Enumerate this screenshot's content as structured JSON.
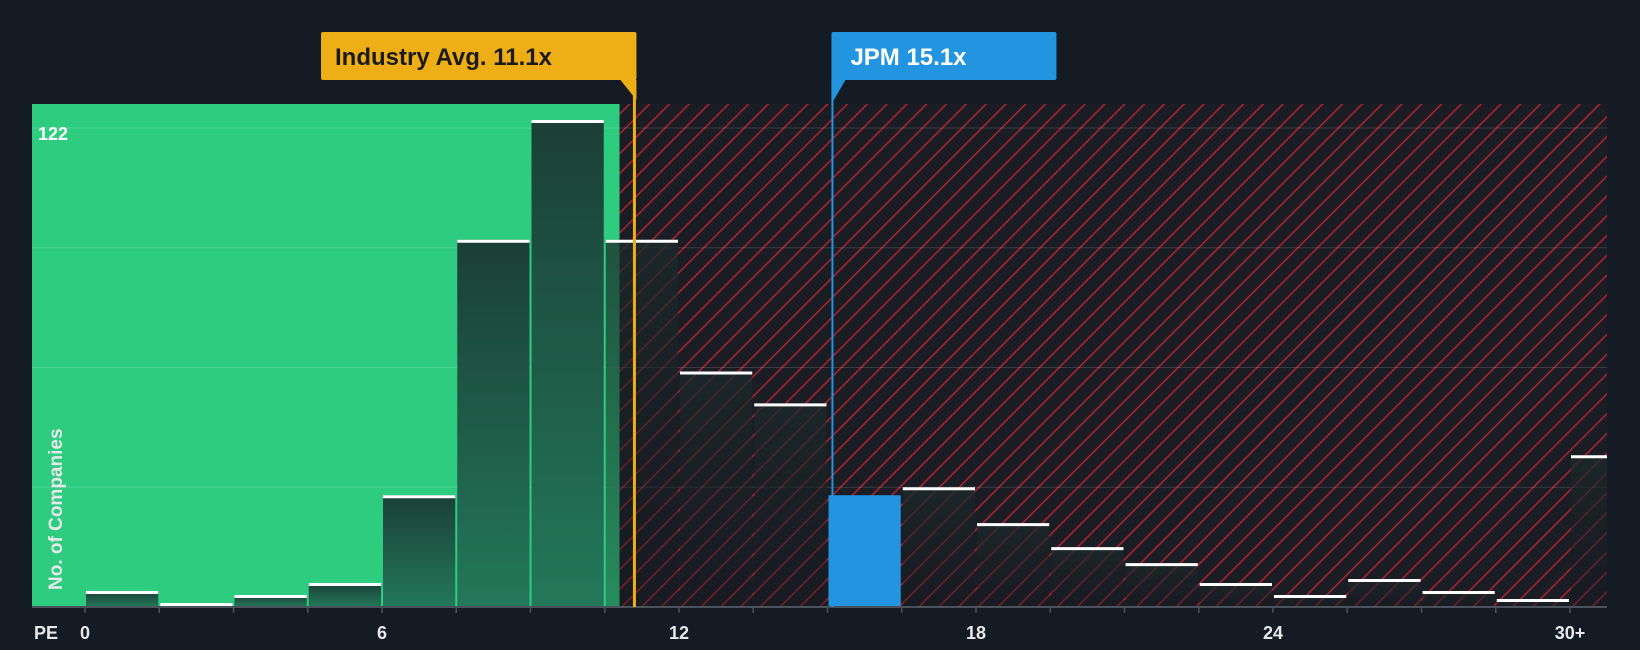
{
  "chart_data": {
    "type": "bar",
    "title": "",
    "xlabel": "PE",
    "ylabel": "No. of Companies",
    "y_max_label": "122",
    "ylim": [
      0,
      126
    ],
    "xlim": [
      0,
      30.5
    ],
    "x_ticks": [
      {
        "value": 0,
        "label": "0"
      },
      {
        "value": 6,
        "label": "6"
      },
      {
        "value": 12,
        "label": "12"
      },
      {
        "value": 18,
        "label": "18"
      },
      {
        "value": 24,
        "label": "24"
      },
      {
        "value": 30,
        "label": "30+"
      }
    ],
    "bins": [
      {
        "start": 0,
        "end": 1.5,
        "value": 4
      },
      {
        "start": 1.5,
        "end": 3,
        "value": 1
      },
      {
        "start": 3,
        "end": 4.5,
        "value": 3
      },
      {
        "start": 4.5,
        "end": 6,
        "value": 6
      },
      {
        "start": 6,
        "end": 7.5,
        "value": 28
      },
      {
        "start": 7.5,
        "end": 9,
        "value": 92
      },
      {
        "start": 9,
        "end": 10.5,
        "value": 122
      },
      {
        "start": 10.5,
        "end": 12,
        "value": 92
      },
      {
        "start": 12,
        "end": 13.5,
        "value": 59
      },
      {
        "start": 13.5,
        "end": 15,
        "value": 51
      },
      {
        "start": 15,
        "end": 16.5,
        "value": 28,
        "highlight": true
      },
      {
        "start": 16.5,
        "end": 18,
        "value": 30
      },
      {
        "start": 18,
        "end": 19.5,
        "value": 21
      },
      {
        "start": 19.5,
        "end": 21,
        "value": 15
      },
      {
        "start": 21,
        "end": 22.5,
        "value": 11
      },
      {
        "start": 22.5,
        "end": 24,
        "value": 6
      },
      {
        "start": 24,
        "end": 25.5,
        "value": 3
      },
      {
        "start": 25.5,
        "end": 27,
        "value": 7
      },
      {
        "start": 27,
        "end": 28.5,
        "value": 4
      },
      {
        "start": 28.5,
        "end": 30,
        "value": 2
      },
      {
        "start": 30,
        "end": 31.5,
        "value": 38
      }
    ],
    "fair_zone_end": 10.8,
    "industry_avg": {
      "value": 11.1,
      "label": "Industry Avg. 11.1x"
    },
    "company": {
      "value": 15.1,
      "label": "JPM 15.1x"
    },
    "grid": true
  },
  "colors": {
    "background": "#151b24",
    "fair_zone": "#2ecc7f",
    "overvalued_zone": "#951f2b",
    "bar_dark": "#1d4d3e",
    "bar_highlight": "#2394e0",
    "industry_avg": "#eeae16",
    "company": "#2394e0"
  }
}
